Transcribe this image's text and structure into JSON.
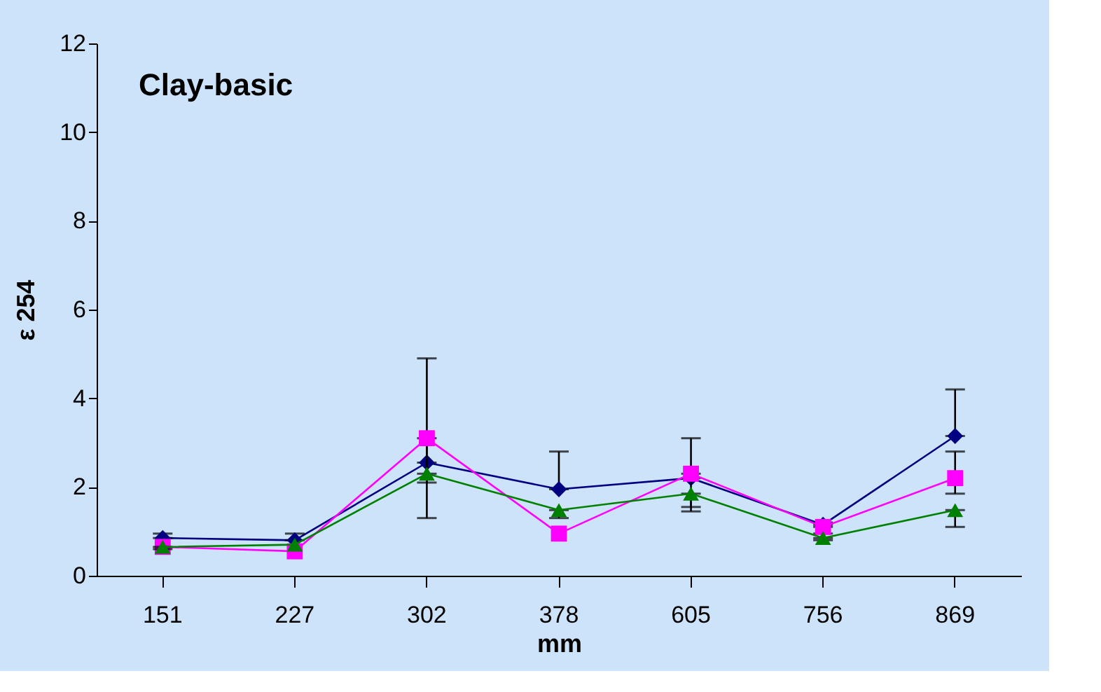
{
  "chart_data": {
    "type": "line",
    "annotations": [
      "Clay-basic"
    ],
    "xlabel": "mm",
    "ylabel": "ε 254",
    "categories": [
      "151",
      "227",
      "302",
      "378",
      "605",
      "756",
      "869"
    ],
    "ylim": [
      0,
      12
    ],
    "yticks": [
      0,
      2,
      4,
      6,
      8,
      10,
      12
    ],
    "grid": false,
    "line_style": "solid",
    "series": [
      {
        "color": "#000080",
        "marker": "diamond",
        "values": [
          0.85,
          0.8,
          2.55,
          1.95,
          2.2,
          1.15,
          3.15
        ],
        "errors": [
          [
            0.85,
            0.95
          ],
          [
            0.8,
            0.95
          ],
          [
            2.55,
            4.9
          ],
          [
            1.95,
            2.8
          ],
          [
            2.2,
            3.1
          ],
          [
            1.15,
            1.2
          ],
          [
            3.15,
            4.2
          ]
        ]
      },
      {
        "color": "#ff00ff",
        "marker": "square",
        "values": [
          0.65,
          0.55,
          3.1,
          0.95,
          2.3,
          1.1,
          2.2
        ],
        "errors": [
          null,
          null,
          [
            2.1,
            3.1
          ],
          null,
          [
            1.55,
            2.3
          ],
          [
            0.95,
            1.1
          ],
          [
            1.85,
            2.8
          ]
        ]
      },
      {
        "color": "#008000",
        "marker": "triangle",
        "values": [
          0.65,
          0.7,
          2.3,
          1.48,
          1.85,
          0.85,
          1.48
        ],
        "errors": [
          [
            0.6,
            0.65
          ],
          null,
          [
            1.3,
            2.3
          ],
          [
            1.3,
            1.48
          ],
          [
            1.45,
            1.85
          ],
          [
            0.8,
            0.85
          ],
          [
            1.1,
            1.48
          ]
        ]
      }
    ]
  }
}
